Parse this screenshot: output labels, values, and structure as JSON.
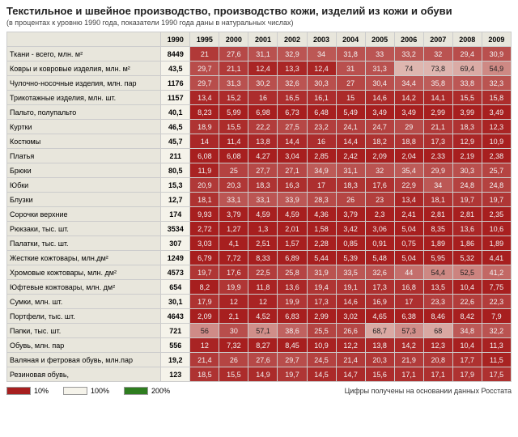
{
  "title": "Текстильное и швейное производство, производство кожи, изделий из кожи и обуви",
  "subtitle": "(в процентах к уровню 1990 года, показатели 1990 года даны в натуральных числах)",
  "footnote": "Цифры получены на основании данных Росстата",
  "legend": {
    "low": {
      "label": "10%",
      "color": "#a71f1f"
    },
    "mid": {
      "label": "100%",
      "color": "#f5f3ea"
    },
    "high": {
      "label": "200%",
      "color": "#2e7d1f"
    }
  },
  "colors": {
    "scale_low": "#a71f1f",
    "scale_mid": "#f5f3ea",
    "header_bg": "#e8e6dc",
    "base_bg": "#f5f3ea",
    "border": "#cccccc",
    "text": "#222222",
    "text_light": "#f2f2f2"
  },
  "years": [
    "1990",
    "1995",
    "2000",
    "2001",
    "2002",
    "2003",
    "2004",
    "2005",
    "2006",
    "2007",
    "2008",
    "2009"
  ],
  "rows": [
    {
      "label": "Ткани - всего, млн. м²",
      "base": "8449",
      "vals": [
        "21",
        "27,6",
        "31,1",
        "32,9",
        "34",
        "31,8",
        "33",
        "33,2",
        "32",
        "29,4",
        "30,9"
      ]
    },
    {
      "label": "Ковры и ковровые изделия, млн. м²",
      "base": "43,5",
      "vals": [
        "29,7",
        "21,1",
        "12,4",
        "13,3",
        "12,4",
        "31",
        "31,3",
        "74",
        "73,8",
        "69,4",
        "54,9"
      ]
    },
    {
      "label": "Чулочно-носочные изделия, млн. пар",
      "base": "1176",
      "vals": [
        "29,7",
        "31,3",
        "30,2",
        "32,6",
        "30,3",
        "27",
        "30,4",
        "34,4",
        "35,8",
        "33,8",
        "32,3"
      ]
    },
    {
      "label": "Трикотажные изделия, млн. шт.",
      "base": "1157",
      "vals": [
        "13,4",
        "15,2",
        "16",
        "16,5",
        "16,1",
        "15",
        "14,6",
        "14,2",
        "14,1",
        "15,5",
        "15,8"
      ]
    },
    {
      "label": "Пальто, полупальто",
      "base": "40,1",
      "vals": [
        "8,23",
        "5,99",
        "6,98",
        "6,73",
        "6,48",
        "5,49",
        "3,49",
        "3,49",
        "2,99",
        "3,99",
        "3,49"
      ]
    },
    {
      "label": "Куртки",
      "base": "46,5",
      "vals": [
        "18,9",
        "15,5",
        "22,2",
        "27,5",
        "23,2",
        "24,1",
        "24,7",
        "29",
        "21,1",
        "18,3",
        "12,3"
      ]
    },
    {
      "label": "Костюмы",
      "base": "45,7",
      "vals": [
        "14",
        "11,4",
        "13,8",
        "14,4",
        "16",
        "14,4",
        "18,2",
        "18,8",
        "17,3",
        "12,9",
        "10,9"
      ]
    },
    {
      "label": "Платья",
      "base": "211",
      "vals": [
        "6,08",
        "6,08",
        "4,27",
        "3,04",
        "2,85",
        "2,42",
        "2,09",
        "2,04",
        "2,33",
        "2,19",
        "2,38"
      ]
    },
    {
      "label": "Брюки",
      "base": "80,5",
      "vals": [
        "11,9",
        "25",
        "27,7",
        "27,1",
        "34,9",
        "31,1",
        "32",
        "35,4",
        "29,9",
        "30,3",
        "25,7"
      ]
    },
    {
      "label": "Юбки",
      "base": "15,3",
      "vals": [
        "20,9",
        "20,3",
        "18,3",
        "16,3",
        "17",
        "18,3",
        "17,6",
        "22,9",
        "34",
        "24,8",
        "24,8"
      ]
    },
    {
      "label": "Блузки",
      "base": "12,7",
      "vals": [
        "18,1",
        "33,1",
        "33,1",
        "33,9",
        "28,3",
        "26",
        "23",
        "13,4",
        "18,1",
        "19,7",
        "19,7"
      ]
    },
    {
      "label": "Сорочки верхние",
      "base": "174",
      "vals": [
        "9,93",
        "3,79",
        "4,59",
        "4,59",
        "4,36",
        "3,79",
        "2,3",
        "2,41",
        "2,81",
        "2,81",
        "2,35"
      ]
    },
    {
      "label": "Рюкзаки, тыс. шт.",
      "base": "3534",
      "vals": [
        "2,72",
        "1,27",
        "1,3",
        "2,01",
        "1,58",
        "3,42",
        "3,06",
        "5,04",
        "8,35",
        "13,6",
        "10,6"
      ]
    },
    {
      "label": "Палатки, тыс. шт.",
      "base": "307",
      "vals": [
        "3,03",
        "4,1",
        "2,51",
        "1,57",
        "2,28",
        "0,85",
        "0,91",
        "0,75",
        "1,89",
        "1,86",
        "1,89"
      ]
    },
    {
      "label": "Жесткие кожтовары, млн.дм²",
      "base": "1249",
      "vals": [
        "6,79",
        "7,72",
        "8,33",
        "6,89",
        "5,44",
        "5,39",
        "5,48",
        "5,04",
        "5,95",
        "5,32",
        "4,41"
      ]
    },
    {
      "label": "Хромовые кожтовары, млн. дм²",
      "base": "4573",
      "vals": [
        "19,7",
        "17,6",
        "22,5",
        "25,8",
        "31,9",
        "33,5",
        "32,6",
        "44",
        "54,4",
        "52,5",
        "41,2"
      ]
    },
    {
      "label": "Юфтевые кожтовары, млн. дм²",
      "base": "654",
      "vals": [
        "8,2",
        "19,9",
        "11,8",
        "13,6",
        "19,4",
        "19,1",
        "17,3",
        "16,8",
        "13,5",
        "10,4",
        "7,75"
      ]
    },
    {
      "label": "Сумки, млн. шт.",
      "base": "30,1",
      "vals": [
        "17,9",
        "12",
        "12",
        "19,9",
        "17,3",
        "14,6",
        "16,9",
        "17",
        "23,3",
        "22,6",
        "22,3"
      ]
    },
    {
      "label": "Портфели, тыс. шт.",
      "base": "4643",
      "vals": [
        "2,09",
        "2,1",
        "4,52",
        "6,83",
        "2,99",
        "3,02",
        "4,65",
        "6,38",
        "8,46",
        "8,42",
        "7,9"
      ]
    },
    {
      "label": "Папки, тыс. шт.",
      "base": "721",
      "vals": [
        "56",
        "30",
        "57,1",
        "38,6",
        "25,5",
        "26,6",
        "68,7",
        "57,3",
        "68",
        "34,8",
        "32,2"
      ]
    },
    {
      "label": "Обувь, млн. пар",
      "base": "556",
      "vals": [
        "12",
        "7,32",
        "8,27",
        "8,45",
        "10,9",
        "12,2",
        "13,8",
        "14,2",
        "12,3",
        "10,4",
        "11,3"
      ]
    },
    {
      "label": "Валяная и фетровая обувь, млн.пар",
      "base": "19,2",
      "vals": [
        "21,4",
        "26",
        "27,6",
        "29,7",
        "24,5",
        "21,4",
        "20,3",
        "21,9",
        "20,8",
        "17,7",
        "11,5"
      ]
    },
    {
      "label": "Резиновая обувь,",
      "base": "123",
      "vals": [
        "18,5",
        "15,5",
        "14,9",
        "19,7",
        "14,5",
        "14,7",
        "15,6",
        "17,1",
        "17,1",
        "17,9",
        "17,5"
      ]
    }
  ]
}
